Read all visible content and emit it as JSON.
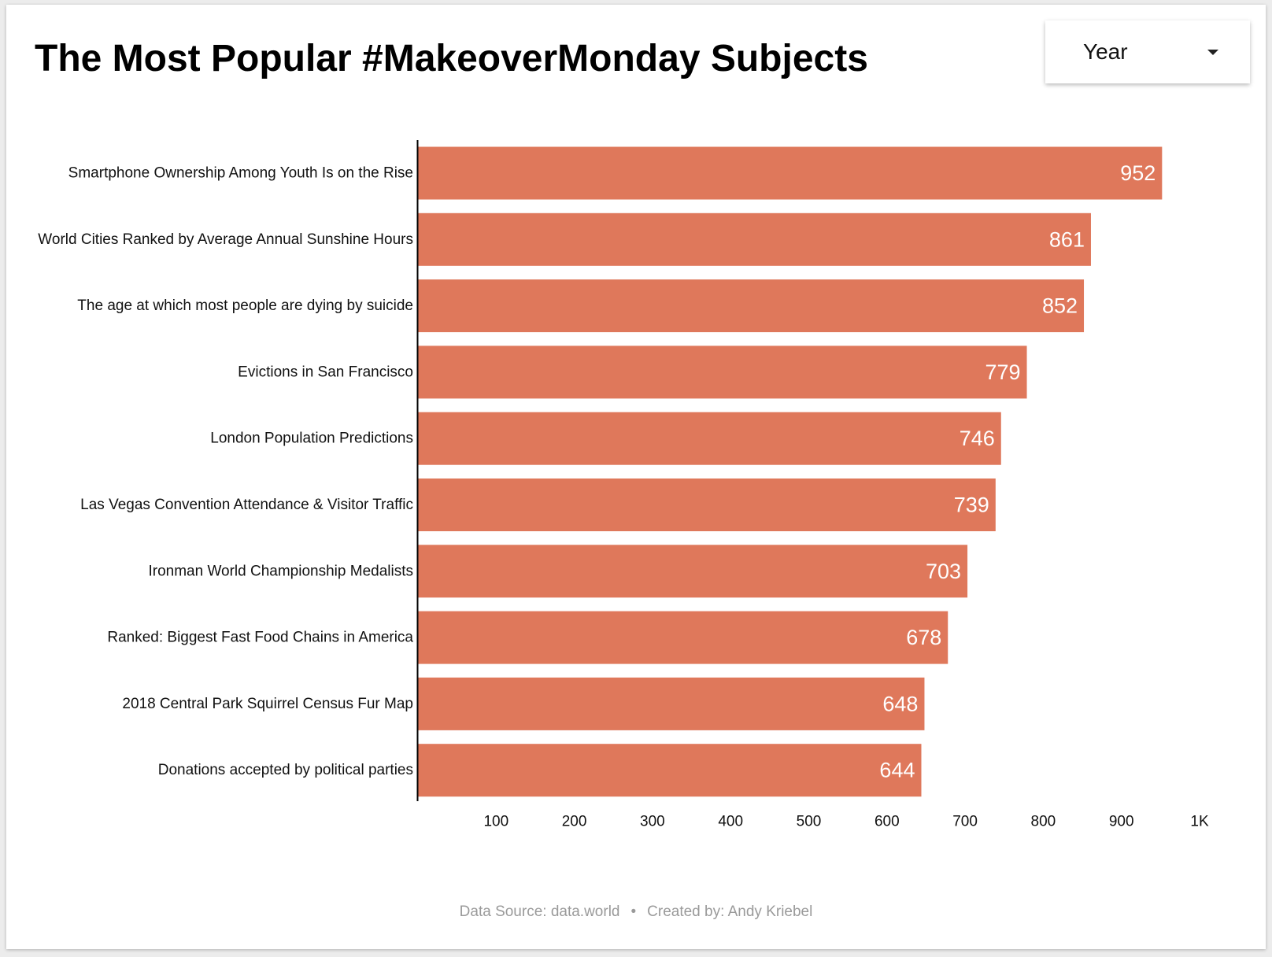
{
  "title": "The Most Popular #MakeoverMonday Subjects",
  "filter": {
    "label": "Year"
  },
  "footer": {
    "source": "Data Source: data.world",
    "separator": "•",
    "credit": "Created by: Andy Kriebel"
  },
  "colors": {
    "bar": "#DF785B",
    "value_label": "#FFFFFF",
    "axis": "#000000",
    "text": "#111111",
    "footer": "#9A9A9A"
  },
  "chart_data": {
    "type": "bar",
    "orientation": "horizontal",
    "categories": [
      "Smartphone Ownership Among Youth Is on the Rise",
      "World Cities Ranked by Average Annual Sunshine Hours",
      "The age at which most people are dying by suicide",
      "Evictions in San Francisco",
      "London Population Predictions",
      "Las Vegas Convention Attendance & Visitor Traffic",
      "Ironman World Championship Medalists",
      "Ranked: Biggest Fast Food Chains in America",
      "2018 Central Park Squirrel Census Fur Map",
      "Donations accepted by political parties"
    ],
    "values": [
      952,
      861,
      852,
      779,
      746,
      739,
      703,
      678,
      648,
      644
    ],
    "xlim": [
      0,
      1000
    ],
    "x_ticks": [
      100,
      200,
      300,
      400,
      500,
      600,
      700,
      800,
      900,
      1000
    ],
    "x_tick_labels": [
      "100",
      "200",
      "300",
      "400",
      "500",
      "600",
      "700",
      "800",
      "900",
      "1K"
    ],
    "data_labels": true,
    "grid": false,
    "legend": "none"
  }
}
